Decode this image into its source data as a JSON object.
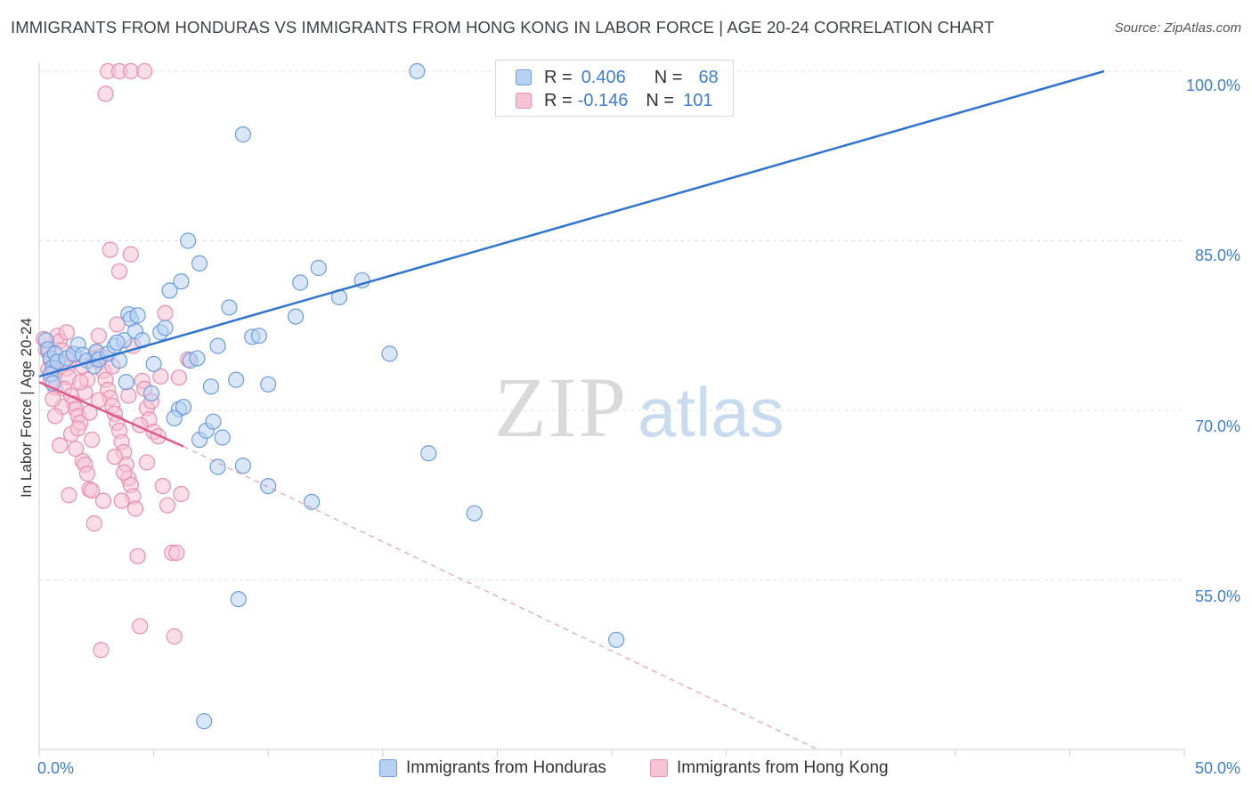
{
  "title": "IMMIGRANTS FROM HONDURAS VS IMMIGRANTS FROM HONG KONG IN LABOR FORCE | AGE 20-24 CORRELATION CHART",
  "source": "Source: ZipAtlas.com",
  "watermark": {
    "zip": "ZIP",
    "atlas": "atlas"
  },
  "stats": {
    "honduras": {
      "r_label": "R =",
      "r": "0.406",
      "n_label": "N =",
      "n": "68"
    },
    "hongkong": {
      "r_label": "R =",
      "r": "-0.146",
      "n_label": "N =",
      "n": "101"
    }
  },
  "colors": {
    "honduras_fill": "#b8d1f2",
    "honduras_stroke": "#6b9de0",
    "honduras_line": "#2f74d0",
    "hongkong_fill": "#f6c3d4",
    "hongkong_stroke": "#eb8db0",
    "hongkong_line": "#e0598b",
    "axis_label": "#3d7dd6"
  },
  "chart_data": {
    "type": "scatter",
    "title": "IMMIGRANTS FROM HONDURAS VS IMMIGRANTS FROM HONG KONG IN LABOR FORCE | AGE 20-24 CORRELATION CHART",
    "xlabel": "",
    "ylabel": "In Labor Force | Age 20-24",
    "xlim": [
      0,
      50
    ],
    "ylim": [
      40,
      100
    ],
    "x_tick_labels": [
      "0.0%",
      "50.0%"
    ],
    "y_ticks": [
      55,
      70,
      85,
      100
    ],
    "y_tick_labels": [
      "55.0%",
      "70.0%",
      "85.0%",
      "100.0%"
    ],
    "grid": true,
    "legend_position": "bottom-center",
    "series": [
      {
        "name": "Immigrants from Honduras",
        "r": 0.406,
        "n": 68,
        "trend": {
          "x": [
            0,
            46.5
          ],
          "y": [
            73.0,
            100.0
          ],
          "style": "solid"
        },
        "points": [
          [
            0.3,
            76.2
          ],
          [
            0.4,
            75.4
          ],
          [
            0.5,
            74.6
          ],
          [
            0.6,
            73.8
          ],
          [
            0.5,
            73.2
          ],
          [
            0.7,
            75.0
          ],
          [
            0.8,
            74.3
          ],
          [
            0.6,
            72.4
          ],
          [
            1.2,
            74.6
          ],
          [
            1.5,
            75.0
          ],
          [
            1.7,
            75.8
          ],
          [
            1.9,
            74.9
          ],
          [
            2.1,
            74.4
          ],
          [
            2.4,
            73.9
          ],
          [
            2.5,
            75.2
          ],
          [
            2.6,
            74.5
          ],
          [
            3.0,
            75.0
          ],
          [
            3.3,
            75.7
          ],
          [
            3.5,
            74.4
          ],
          [
            3.7,
            76.2
          ],
          [
            3.8,
            72.5
          ],
          [
            3.9,
            78.5
          ],
          [
            4.0,
            78.1
          ],
          [
            4.2,
            77.0
          ],
          [
            3.4,
            76.0
          ],
          [
            4.3,
            78.4
          ],
          [
            4.5,
            76.2
          ],
          [
            4.9,
            71.5
          ],
          [
            5.0,
            74.1
          ],
          [
            5.3,
            76.9
          ],
          [
            5.5,
            77.3
          ],
          [
            5.7,
            80.6
          ],
          [
            6.1,
            70.1
          ],
          [
            6.3,
            70.3
          ],
          [
            6.6,
            74.4
          ],
          [
            6.9,
            74.6
          ],
          [
            5.9,
            69.3
          ],
          [
            7.0,
            67.4
          ],
          [
            7.3,
            68.2
          ],
          [
            7.6,
            69.0
          ],
          [
            6.2,
            81.4
          ],
          [
            6.5,
            85.0
          ],
          [
            7.0,
            83.0
          ],
          [
            7.5,
            72.1
          ],
          [
            7.8,
            75.7
          ],
          [
            8.0,
            67.6
          ],
          [
            8.3,
            79.1
          ],
          [
            8.6,
            72.7
          ],
          [
            8.7,
            53.3
          ],
          [
            9.3,
            76.5
          ],
          [
            9.6,
            76.6
          ],
          [
            10.0,
            72.3
          ],
          [
            11.2,
            78.3
          ],
          [
            11.4,
            81.3
          ],
          [
            11.9,
            61.9
          ],
          [
            12.2,
            82.6
          ],
          [
            13.1,
            80.0
          ],
          [
            14.1,
            81.5
          ],
          [
            15.3,
            75.0
          ],
          [
            17.0,
            66.2
          ],
          [
            19.0,
            60.9
          ],
          [
            25.2,
            49.7
          ],
          [
            7.2,
            42.5
          ],
          [
            10.0,
            63.3
          ],
          [
            8.9,
            65.1
          ],
          [
            7.8,
            65.0
          ],
          [
            16.5,
            100.0
          ],
          [
            8.9,
            94.4
          ]
        ]
      },
      {
        "name": "Immigrants from Hong Kong",
        "r": -0.146,
        "n": 101,
        "trend": {
          "x": [
            0,
            6.3
          ],
          "y": [
            72.5,
            66.8
          ],
          "style": "solid",
          "extension": {
            "x": [
              6.3,
              34.0
            ],
            "y": [
              66.8,
              40.0
            ],
            "style": "dashed"
          }
        },
        "points": [
          [
            0.2,
            76.3
          ],
          [
            0.3,
            75.4
          ],
          [
            0.4,
            75.1
          ],
          [
            0.5,
            74.4
          ],
          [
            0.4,
            73.6
          ],
          [
            0.6,
            73.2
          ],
          [
            0.5,
            72.6
          ],
          [
            0.7,
            72.0
          ],
          [
            0.8,
            76.6
          ],
          [
            0.9,
            76.1
          ],
          [
            1.0,
            75.3
          ],
          [
            1.1,
            74.2
          ],
          [
            1.2,
            73.7
          ],
          [
            1.3,
            72.9
          ],
          [
            1.1,
            71.9
          ],
          [
            1.4,
            71.3
          ],
          [
            1.5,
            70.6
          ],
          [
            1.6,
            70.1
          ],
          [
            1.7,
            69.5
          ],
          [
            1.8,
            68.9
          ],
          [
            1.4,
            67.9
          ],
          [
            1.6,
            66.6
          ],
          [
            1.9,
            65.5
          ],
          [
            2.0,
            65.2
          ],
          [
            2.1,
            64.4
          ],
          [
            2.2,
            63.0
          ],
          [
            2.3,
            62.9
          ],
          [
            2.4,
            60.0
          ],
          [
            2.5,
            75.1
          ],
          [
            2.6,
            74.3
          ],
          [
            2.8,
            73.5
          ],
          [
            2.9,
            72.7
          ],
          [
            3.0,
            71.8
          ],
          [
            3.1,
            71.1
          ],
          [
            3.2,
            70.4
          ],
          [
            3.3,
            69.7
          ],
          [
            3.4,
            68.9
          ],
          [
            3.5,
            68.2
          ],
          [
            3.6,
            67.2
          ],
          [
            3.7,
            66.3
          ],
          [
            3.8,
            65.2
          ],
          [
            3.9,
            64.0
          ],
          [
            4.0,
            63.4
          ],
          [
            4.1,
            62.4
          ],
          [
            4.2,
            61.3
          ],
          [
            4.3,
            57.1
          ],
          [
            4.4,
            50.9
          ],
          [
            4.5,
            72.6
          ],
          [
            4.6,
            71.9
          ],
          [
            4.7,
            70.2
          ],
          [
            4.8,
            69.2
          ],
          [
            5.0,
            68.1
          ],
          [
            5.2,
            67.7
          ],
          [
            5.4,
            63.3
          ],
          [
            5.6,
            61.6
          ],
          [
            5.8,
            57.4
          ],
          [
            6.0,
            57.4
          ],
          [
            6.2,
            62.6
          ],
          [
            5.9,
            50.0
          ],
          [
            6.1,
            72.9
          ],
          [
            6.5,
            74.5
          ],
          [
            2.7,
            48.8
          ],
          [
            3.1,
            84.2
          ],
          [
            3.5,
            82.3
          ],
          [
            4.0,
            83.8
          ],
          [
            5.5,
            78.6
          ],
          [
            3.0,
            100.0
          ],
          [
            3.5,
            100.0
          ],
          [
            4.0,
            100.0
          ],
          [
            4.6,
            100.0
          ],
          [
            2.9,
            98.0
          ],
          [
            2.4,
            74.6
          ],
          [
            1.9,
            73.9
          ],
          [
            2.0,
            71.6
          ],
          [
            2.6,
            70.9
          ],
          [
            1.7,
            68.4
          ],
          [
            2.2,
            69.8
          ],
          [
            3.3,
            65.9
          ],
          [
            0.9,
            66.9
          ],
          [
            1.3,
            62.5
          ],
          [
            2.8,
            62.0
          ],
          [
            3.7,
            64.5
          ],
          [
            2.6,
            76.6
          ],
          [
            3.4,
            77.6
          ],
          [
            2.1,
            72.7
          ],
          [
            4.9,
            70.8
          ],
          [
            5.3,
            73.0
          ],
          [
            1.0,
            70.3
          ],
          [
            0.7,
            69.5
          ],
          [
            1.8,
            72.5
          ],
          [
            3.9,
            71.3
          ],
          [
            4.4,
            68.7
          ],
          [
            2.3,
            67.4
          ],
          [
            1.5,
            74.9
          ],
          [
            0.6,
            71.0
          ],
          [
            3.2,
            73.9
          ],
          [
            2.7,
            74.8
          ],
          [
            1.2,
            76.9
          ],
          [
            4.1,
            75.7
          ],
          [
            4.7,
            65.4
          ],
          [
            3.6,
            62.0
          ]
        ]
      }
    ]
  },
  "legend": {
    "honduras": "Immigrants from Honduras",
    "hongkong": "Immigrants from Hong Kong"
  }
}
